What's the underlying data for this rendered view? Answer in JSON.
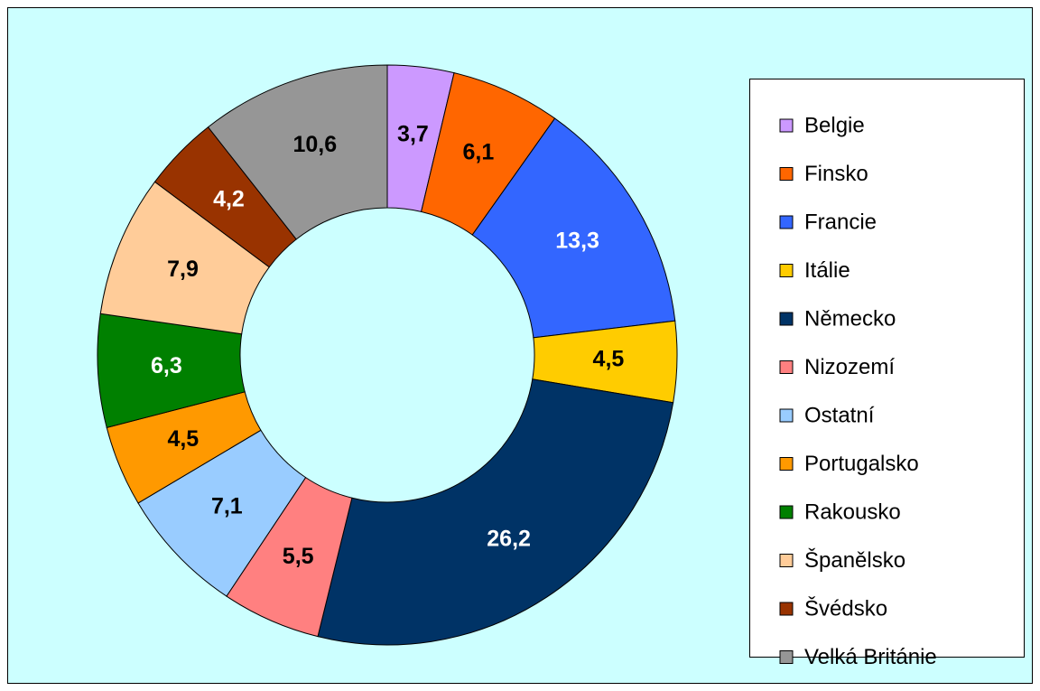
{
  "chart_data": {
    "type": "donut",
    "categories": [
      "Belgie",
      "Finsko",
      "Francie",
      "Itálie",
      "Německo",
      "Nizozemí",
      "Ostatní",
      "Portugalsko",
      "Rakousko",
      "Španělsko",
      "Švédsko",
      "Velká Británie"
    ],
    "values": [
      3.7,
      6.1,
      13.3,
      4.5,
      26.2,
      5.5,
      7.1,
      4.5,
      6.3,
      7.9,
      4.2,
      10.6
    ],
    "value_labels": [
      "3,7",
      "6,1",
      "13,3",
      "4,5",
      "26,2",
      "5,5",
      "7,1",
      "4,5",
      "6,3",
      "7,9",
      "4,2",
      "10,6"
    ],
    "colors": [
      "#cc99ff",
      "#ff6600",
      "#3366ff",
      "#ffcc00",
      "#003366",
      "#ff8080",
      "#99ccff",
      "#ff9900",
      "#008000",
      "#ffcc99",
      "#993300",
      "#969696"
    ],
    "legend": "right"
  }
}
